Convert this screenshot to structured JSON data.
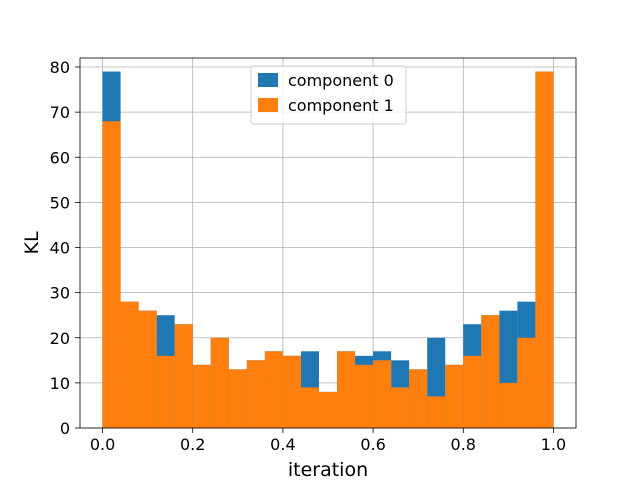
{
  "chart_data": {
    "type": "bar",
    "bins": [
      [
        0.0,
        0.04
      ],
      [
        0.04,
        0.08
      ],
      [
        0.08,
        0.12
      ],
      [
        0.12,
        0.16
      ],
      [
        0.16,
        0.2
      ],
      [
        0.2,
        0.24
      ],
      [
        0.24,
        0.28
      ],
      [
        0.28,
        0.32
      ],
      [
        0.32,
        0.36
      ],
      [
        0.36,
        0.4
      ],
      [
        0.4,
        0.44
      ],
      [
        0.44,
        0.48
      ],
      [
        0.48,
        0.52
      ],
      [
        0.52,
        0.56
      ],
      [
        0.56,
        0.6
      ],
      [
        0.6,
        0.64
      ],
      [
        0.64,
        0.68
      ],
      [
        0.68,
        0.72
      ],
      [
        0.72,
        0.76
      ],
      [
        0.76,
        0.8
      ],
      [
        0.8,
        0.84
      ],
      [
        0.84,
        0.88
      ],
      [
        0.88,
        0.92
      ],
      [
        0.92,
        0.96
      ],
      [
        0.96,
        1.0
      ]
    ],
    "series": [
      {
        "name": "component 0",
        "color": "#1f77b4",
        "values": [
          79,
          28,
          26,
          25,
          23,
          14,
          20,
          13,
          15,
          17,
          16,
          17,
          8,
          17,
          16,
          17,
          15,
          13,
          20,
          14,
          23,
          25,
          26,
          28,
          79
        ]
      },
      {
        "name": "component 1",
        "color": "#ff7f0e",
        "values": [
          68,
          28,
          26,
          16,
          23,
          14,
          20,
          13,
          15,
          17,
          16,
          9,
          8,
          17,
          14,
          15,
          9,
          13,
          7,
          14,
          16,
          25,
          10,
          20,
          79
        ]
      }
    ],
    "xlabel": "iteration",
    "ylabel": "KL",
    "xlim": [
      -0.05,
      1.05
    ],
    "ylim": [
      0,
      82
    ],
    "xticks": [
      0.0,
      0.2,
      0.4,
      0.6,
      0.8,
      1.0
    ],
    "xtick_labels": [
      "0.0",
      "0.2",
      "0.4",
      "0.6",
      "0.8",
      "1.0"
    ],
    "yticks": [
      0,
      10,
      20,
      30,
      40,
      50,
      60,
      70,
      80
    ],
    "ytick_labels": [
      "0",
      "10",
      "20",
      "30",
      "40",
      "50",
      "60",
      "70",
      "80"
    ],
    "grid": true,
    "legend_position": "top-center"
  }
}
